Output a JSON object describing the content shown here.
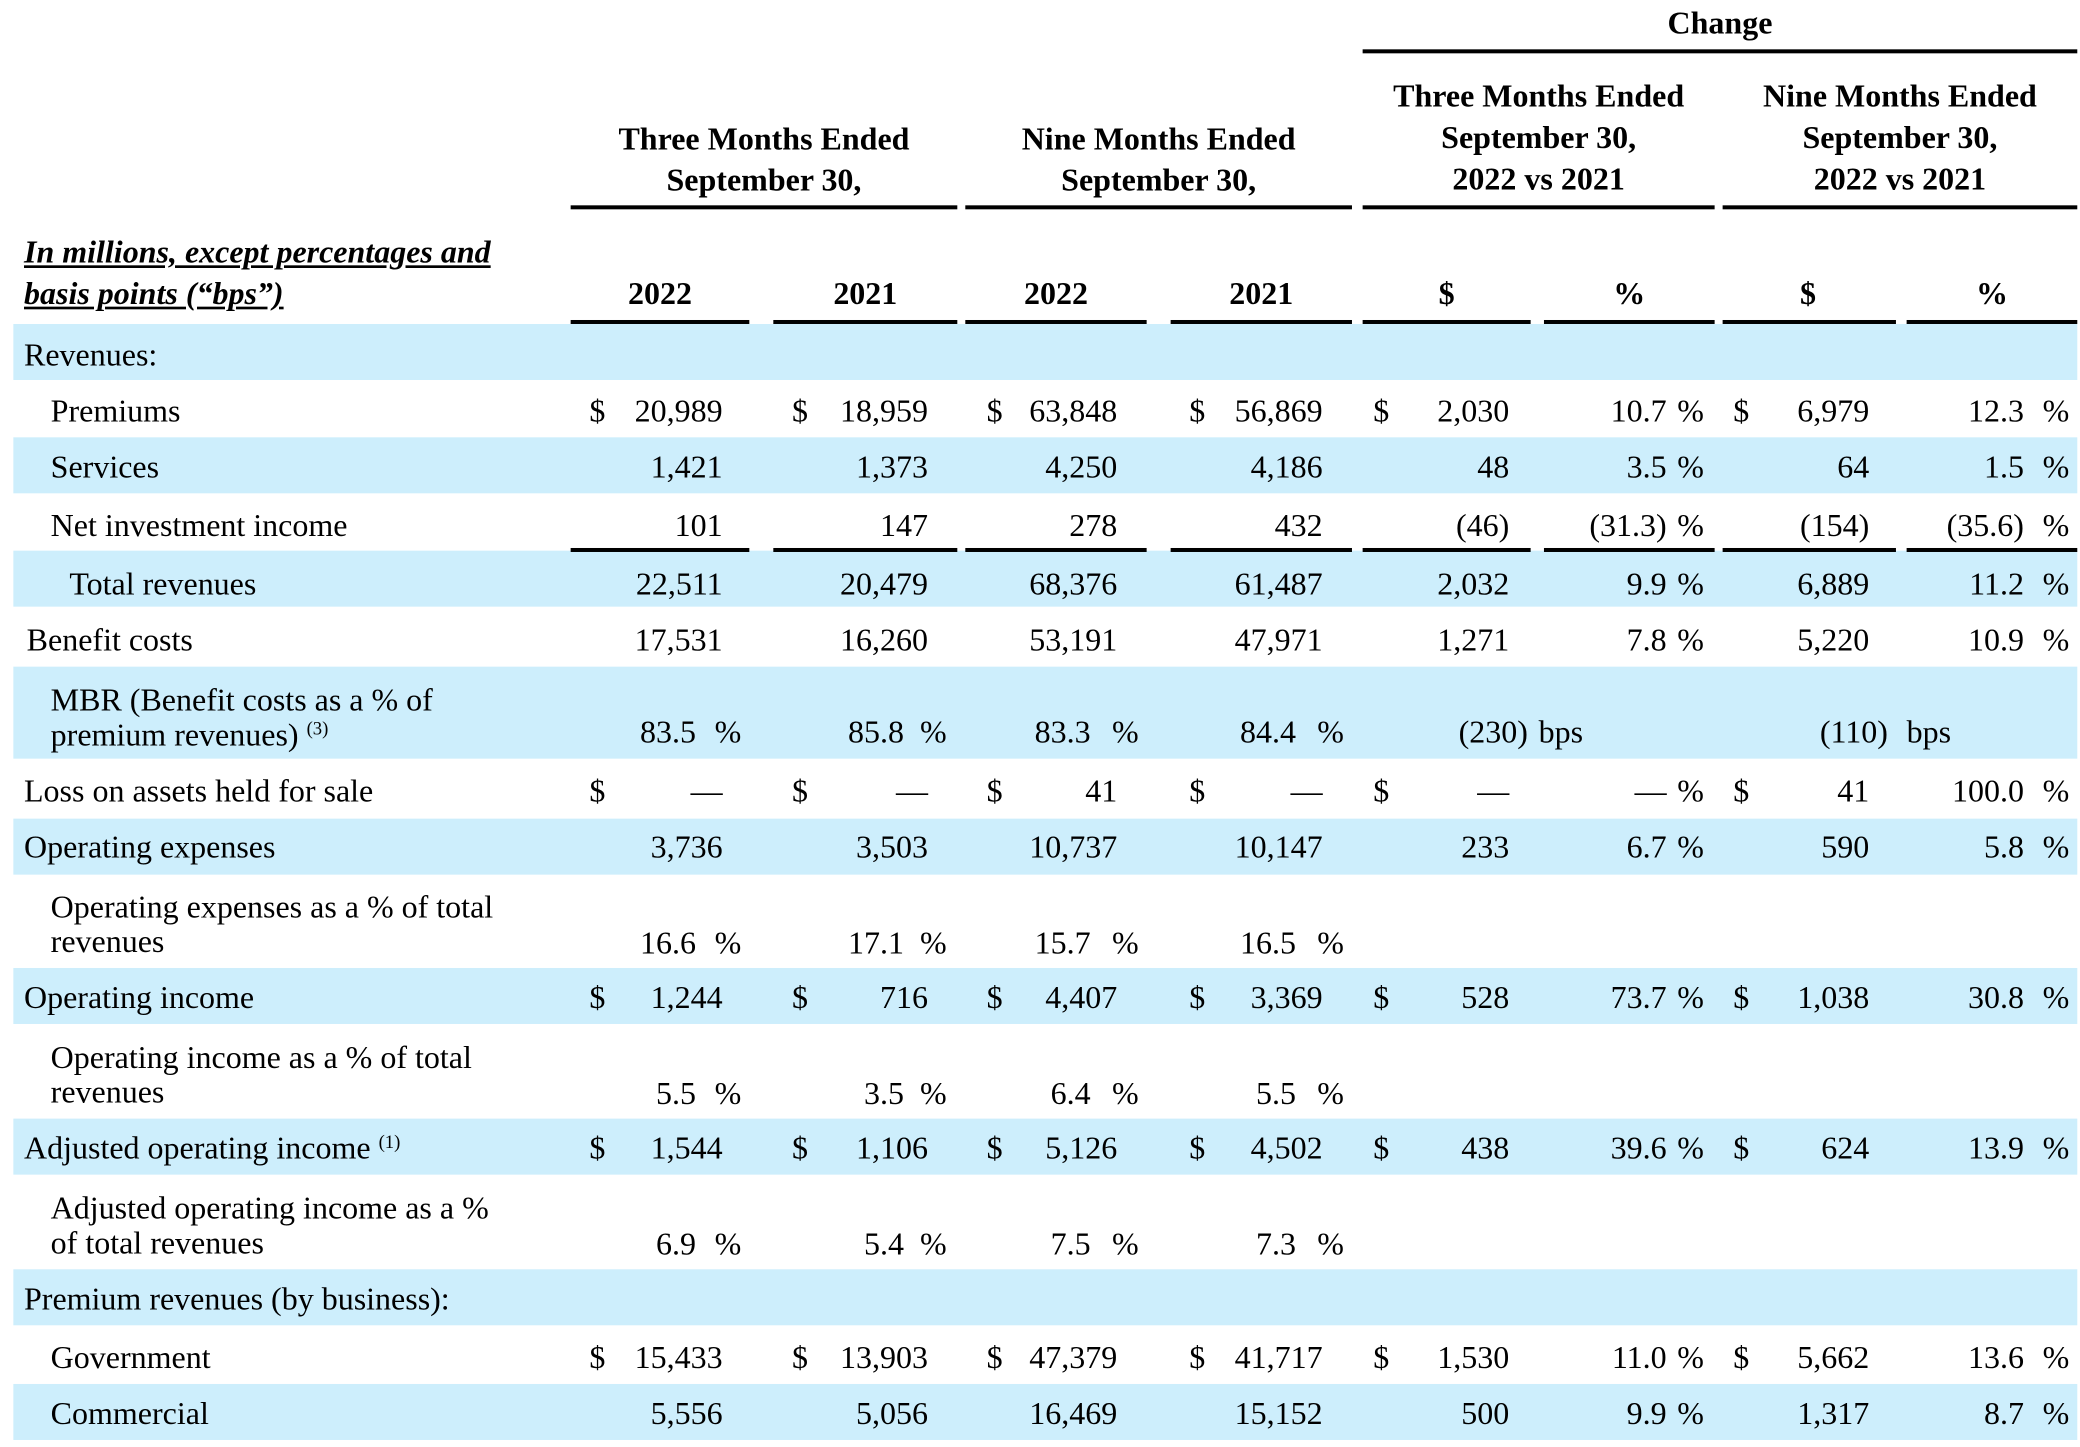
{
  "header": {
    "change_label": "Change",
    "col_group_1": [
      "Three Months Ended",
      "September 30,"
    ],
    "col_group_2": [
      "Nine Months Ended",
      "September 30,"
    ],
    "col_group_3": [
      "Three Months Ended",
      "September 30,",
      "2022 vs 2021"
    ],
    "col_group_4": [
      "Nine Months Ended",
      "September 30,",
      "2022 vs 2021"
    ],
    "units_note": [
      "In millions, except percentages and",
      "basis points (“bps”)"
    ],
    "year_cols": [
      "2022",
      "2021",
      "2022",
      "2021"
    ],
    "change_cols": [
      "$",
      "%",
      "$",
      "%"
    ]
  },
  "rows": {
    "revenues_heading": "Revenues:",
    "premiums": {
      "label": "Premiums",
      "v": [
        "20,989",
        "18,959",
        "63,848",
        "56,869",
        "2,030",
        "10.7",
        "6,979",
        "12.3"
      ]
    },
    "services": {
      "label": "Services",
      "v": [
        "1,421",
        "1,373",
        "4,250",
        "4,186",
        "48",
        "3.5",
        "64",
        "1.5"
      ]
    },
    "nii": {
      "label": "Net investment income",
      "v": [
        "101",
        "147",
        "278",
        "432",
        "(46)",
        "(31.3)",
        "(154)",
        "(35.6)"
      ]
    },
    "total_rev": {
      "label": "Total revenues",
      "v": [
        "22,511",
        "20,479",
        "68,376",
        "61,487",
        "2,032",
        "9.9",
        "6,889",
        "11.2"
      ]
    },
    "benefit": {
      "label": "Benefit costs",
      "v": [
        "17,531",
        "16,260",
        "53,191",
        "47,971",
        "1,271",
        "7.8",
        "5,220",
        "10.9"
      ]
    },
    "mbr": {
      "label1": "MBR (Benefit costs as a % of",
      "label2": "premium revenues)",
      "note": "(3)",
      "v": [
        "83.5",
        "85.8",
        "83.3",
        "84.4"
      ],
      "chg": [
        "(230)",
        "(110)"
      ],
      "bps": "bps"
    },
    "loss": {
      "label": "Loss on assets held for sale",
      "v": [
        "—",
        "—",
        "41",
        "—",
        "—",
        "—",
        "41",
        "100.0"
      ]
    },
    "opex": {
      "label": "Operating expenses",
      "v": [
        "3,736",
        "3,503",
        "10,737",
        "10,147",
        "233",
        "6.7",
        "590",
        "5.8"
      ]
    },
    "opex_pct": {
      "label1": "Operating expenses as a % of total",
      "label2": "revenues",
      "v": [
        "16.6",
        "17.1",
        "15.7",
        "16.5"
      ]
    },
    "opinc": {
      "label": "Operating income",
      "v": [
        "1,244",
        "716",
        "4,407",
        "3,369",
        "528",
        "73.7",
        "1,038",
        "30.8"
      ]
    },
    "opinc_pct": {
      "label1": "Operating income as a % of total",
      "label2": "revenues",
      "v": [
        "5.5",
        "3.5",
        "6.4",
        "5.5"
      ]
    },
    "adj": {
      "label": "Adjusted operating income",
      "note": "(1)",
      "v": [
        "1,544",
        "1,106",
        "5,126",
        "4,502",
        "438",
        "39.6",
        "624",
        "13.9"
      ]
    },
    "adj_pct": {
      "label1": "Adjusted operating income as a %",
      "label2": "of total revenues",
      "v": [
        "6.9",
        "5.4",
        "7.5",
        "7.3"
      ]
    },
    "prem_heading": "Premium revenues (by business):",
    "gov": {
      "label": "Government",
      "v": [
        "15,433",
        "13,903",
        "47,379",
        "41,717",
        "1,530",
        "11.0",
        "5,662",
        "13.6"
      ]
    },
    "com": {
      "label": "Commercial",
      "v": [
        "5,556",
        "5,056",
        "16,469",
        "15,152",
        "500",
        "9.9",
        "1,317",
        "8.7"
      ]
    }
  },
  "symbols": {
    "dollar": "$",
    "percent": "%"
  }
}
